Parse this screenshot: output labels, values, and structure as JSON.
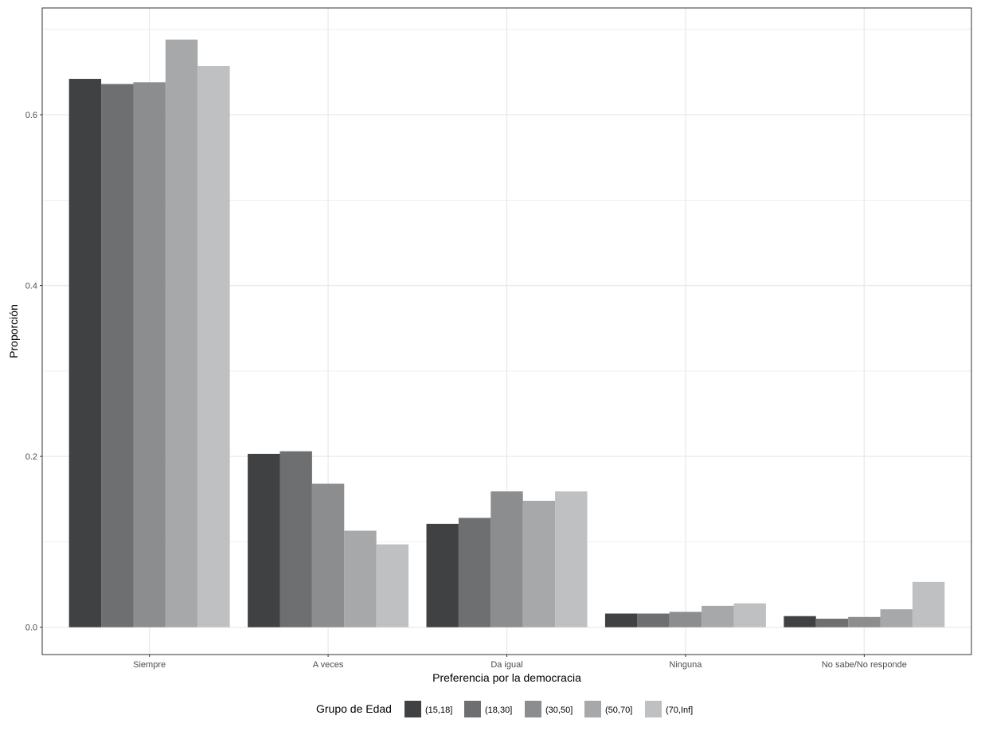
{
  "chart_data": {
    "type": "bar",
    "title": "",
    "xlabel": "Preferencia por la democracia",
    "ylabel": "Proporción",
    "ylim": [
      -0.032,
      0.725
    ],
    "yticks": [
      0.0,
      0.2,
      0.4,
      0.6
    ],
    "ytick_labels": [
      "0.0",
      "0.2",
      "0.4",
      "0.6"
    ],
    "grid": true,
    "legend": {
      "title": "Grupo de Edad",
      "position": "bottom"
    },
    "categories": [
      "Siempre",
      "A veces",
      "Da igual",
      "Ninguna",
      "No sabe/No responde"
    ],
    "series": [
      {
        "name": "(15,18]",
        "color": "#404143",
        "values": [
          0.642,
          0.203,
          0.121,
          0.016,
          0.013
        ]
      },
      {
        "name": "(18,30]",
        "color": "#6e6f71",
        "values": [
          0.636,
          0.206,
          0.128,
          0.016,
          0.01
        ]
      },
      {
        "name": "(30,50]",
        "color": "#8c8d8f",
        "values": [
          0.638,
          0.168,
          0.159,
          0.018,
          0.012
        ]
      },
      {
        "name": "(50,70]",
        "color": "#a7a8aa",
        "values": [
          0.688,
          0.113,
          0.148,
          0.025,
          0.021
        ]
      },
      {
        "name": "(70,Inf]",
        "color": "#bfc0c2",
        "values": [
          0.657,
          0.097,
          0.159,
          0.028,
          0.053
        ]
      }
    ]
  }
}
